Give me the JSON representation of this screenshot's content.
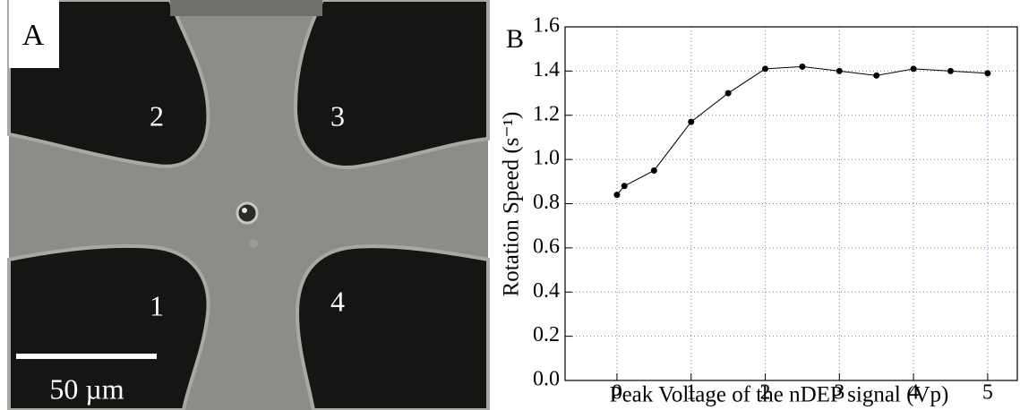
{
  "panel_a": {
    "label": "A",
    "electrodes": [
      "1",
      "2",
      "3",
      "4"
    ],
    "scale_bar": "50 µm"
  },
  "chart_data": {
    "type": "line",
    "panel_label": "B",
    "xlabel": "Peak Voltage of the nDEP signal (Vp)",
    "ylabel": "Rotation Speed (s⁻¹)",
    "x": [
      0,
      0.1,
      0.5,
      1,
      1.5,
      2,
      2.5,
      3,
      3.5,
      4,
      4.5,
      5
    ],
    "series": [
      {
        "color": "#000000",
        "values": [
          0.84,
          0.88,
          0.95,
          1.17,
          1.3,
          1.41,
          1.42,
          1.4,
          1.38,
          1.41,
          1.4,
          1.39
        ]
      }
    ],
    "xlim": [
      -0.7,
      5.4
    ],
    "ylim": [
      0,
      1.6
    ],
    "xticks": [
      0,
      1,
      2,
      3,
      4,
      5
    ],
    "yticks": [
      {
        "value": 0,
        "label": "0.0"
      },
      0.2,
      0.4,
      0.6,
      0.8,
      {
        "value": 1,
        "label": "1.0"
      },
      1.2,
      1.4,
      1.6
    ],
    "grid": true
  }
}
